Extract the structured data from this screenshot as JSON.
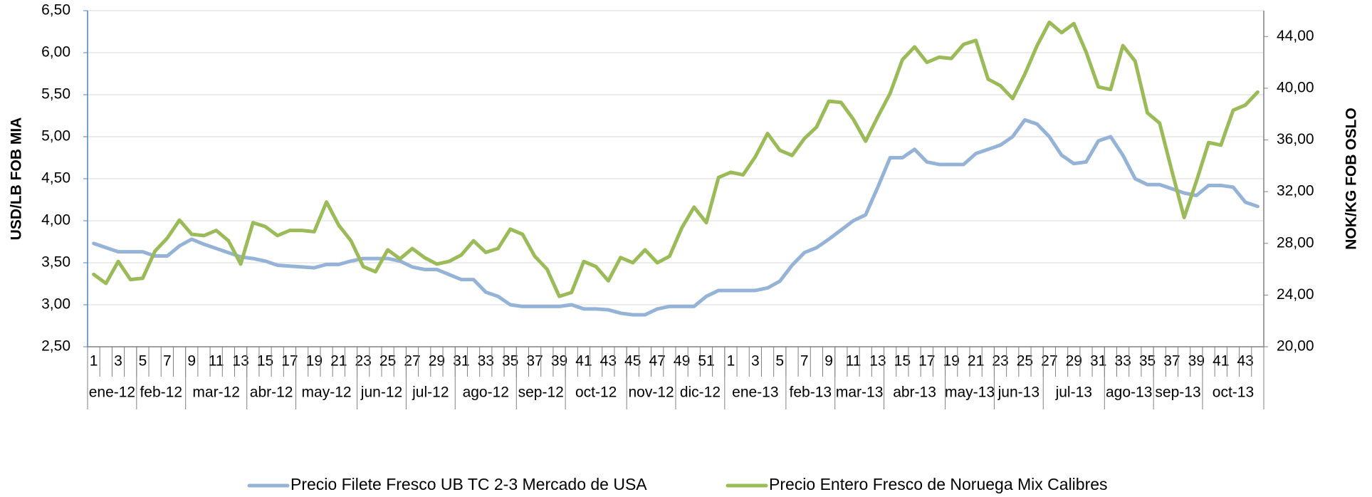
{
  "chart_data": {
    "type": "line",
    "ylabel": "USD/LB FOB MIA",
    "y2label": "NOK/KG FOB OSLO",
    "categories": [
      "1",
      null,
      "3",
      null,
      "5",
      null,
      "7",
      null,
      "9",
      null,
      "11",
      null,
      "13",
      null,
      "15",
      null,
      "17",
      null,
      "19",
      null,
      "21",
      null,
      "23",
      null,
      "25",
      null,
      "27",
      null,
      "29",
      null,
      "31",
      null,
      "33",
      null,
      "35",
      null,
      "37",
      null,
      "39",
      null,
      "41",
      null,
      "43",
      null,
      "45",
      null,
      "47",
      null,
      "49",
      null,
      "51",
      null,
      "1",
      null,
      "3",
      null,
      "5",
      null,
      "7",
      null,
      "9",
      null,
      "11",
      null,
      "13",
      null,
      "15",
      null,
      "17",
      null,
      "19",
      null,
      "21",
      null,
      "23",
      null,
      "25",
      null,
      "27",
      null,
      "29",
      null,
      "31",
      null,
      "33",
      null,
      "35",
      null,
      "37",
      null,
      "39",
      null,
      "41",
      null,
      "43",
      null
    ],
    "x_groups": [
      {
        "label": "ene-12",
        "count": 4
      },
      {
        "label": "feb-12",
        "count": 4
      },
      {
        "label": "mar-12",
        "count": 5
      },
      {
        "label": "abr-12",
        "count": 4
      },
      {
        "label": "may-12",
        "count": 5
      },
      {
        "label": "jun-12",
        "count": 4
      },
      {
        "label": "jul-12",
        "count": 4
      },
      {
        "label": "ago-12",
        "count": 5
      },
      {
        "label": "sep-12",
        "count": 4
      },
      {
        "label": "oct-12",
        "count": 5
      },
      {
        "label": "nov-12",
        "count": 4
      },
      {
        "label": "dic-12",
        "count": 4
      },
      {
        "label": "ene-13",
        "count": 5
      },
      {
        "label": "feb-13",
        "count": 4
      },
      {
        "label": "mar-13",
        "count": 4
      },
      {
        "label": "abr-13",
        "count": 5
      },
      {
        "label": "may-13",
        "count": 4
      },
      {
        "label": "jun-13",
        "count": 4
      },
      {
        "label": "jul-13",
        "count": 5
      },
      {
        "label": "ago-13",
        "count": 4
      },
      {
        "label": "sep-13",
        "count": 4
      },
      {
        "label": "oct-13",
        "count": 5
      }
    ],
    "series": [
      {
        "name": "Precio Filete Fresco UB TC 2-3 Mercado de USA",
        "color": "#95b3d7",
        "values": [
          3.73,
          3.68,
          3.63,
          3.63,
          3.63,
          3.58,
          3.58,
          3.7,
          3.78,
          3.72,
          3.67,
          3.62,
          3.57,
          3.55,
          3.52,
          3.47,
          3.46,
          3.45,
          3.44,
          3.48,
          3.48,
          3.52,
          3.55,
          3.55,
          3.55,
          3.52,
          3.45,
          3.42,
          3.42,
          3.36,
          3.3,
          3.3,
          3.15,
          3.1,
          3.0,
          2.98,
          2.98,
          2.98,
          2.98,
          3.0,
          2.95,
          2.95,
          2.94,
          2.9,
          2.88,
          2.88,
          2.95,
          2.98,
          2.98,
          2.98,
          3.1,
          3.17,
          3.17,
          3.17,
          3.17,
          3.2,
          3.28,
          3.47,
          3.62,
          3.68,
          3.78,
          3.89,
          4.0,
          4.07,
          4.4,
          4.75,
          4.75,
          4.85,
          4.7,
          4.67,
          4.67,
          4.67,
          4.8,
          4.85,
          4.9,
          5.0,
          5.2,
          5.15,
          5.0,
          4.78,
          4.68,
          4.7,
          4.95,
          5.0,
          4.78,
          4.5,
          4.43,
          4.43,
          4.38,
          4.33,
          4.3,
          4.42,
          4.42,
          4.4,
          4.22,
          4.17
        ]
      },
      {
        "name": "Precio Entero Fresco de Noruega Mix Calibres",
        "color": "#9bbb59",
        "axis": "y2",
        "values": [
          25.6,
          24.9,
          26.6,
          25.2,
          25.3,
          27.4,
          28.4,
          29.8,
          28.7,
          28.6,
          29.0,
          28.2,
          26.4,
          29.6,
          29.3,
          28.6,
          29.0,
          29.0,
          28.9,
          31.2,
          29.4,
          28.2,
          26.2,
          25.8,
          27.5,
          26.8,
          27.6,
          26.9,
          26.4,
          26.6,
          27.1,
          28.2,
          27.3,
          27.6,
          29.1,
          28.7,
          27.0,
          26.0,
          23.9,
          24.2,
          26.6,
          26.2,
          25.1,
          26.9,
          26.5,
          27.5,
          26.5,
          27.0,
          29.2,
          30.8,
          29.6,
          33.1,
          33.5,
          33.3,
          34.7,
          36.5,
          35.2,
          34.8,
          36.1,
          37.0,
          39.0,
          38.9,
          37.6,
          35.9,
          37.8,
          39.6,
          42.2,
          43.2,
          42.0,
          42.4,
          42.3,
          43.4,
          43.7,
          40.7,
          40.2,
          39.2,
          41.1,
          43.3,
          45.1,
          44.3,
          45.0,
          42.8,
          40.1,
          39.9,
          43.3,
          42.1,
          38.1,
          37.3,
          33.6,
          30.0,
          32.8,
          35.8,
          35.6,
          38.3,
          38.7,
          39.7
        ]
      }
    ],
    "ylim": [
      2.5,
      6.5
    ],
    "yticks": [
      {
        "value": 2.5,
        "label": "2,50"
      },
      {
        "value": 3,
        "label": "3,00"
      },
      {
        "value": 3.5,
        "label": "3,50"
      },
      {
        "value": 4,
        "label": "4,00"
      },
      {
        "value": 4.5,
        "label": "4,50"
      },
      {
        "value": 5,
        "label": "5,00"
      },
      {
        "value": 5.5,
        "label": "5,50"
      },
      {
        "value": 6,
        "label": "6,00"
      },
      {
        "value": 6.5,
        "label": "6,50"
      }
    ],
    "y2lim": [
      20,
      46
    ],
    "y2ticks": [
      {
        "value": 20,
        "label": "20,00"
      },
      {
        "value": 24,
        "label": "24,00"
      },
      {
        "value": 28,
        "label": "28,00"
      },
      {
        "value": 32,
        "label": "32,00"
      },
      {
        "value": 36,
        "label": "36,00"
      },
      {
        "value": 40,
        "label": "40,00"
      },
      {
        "value": 44,
        "label": "44,00"
      }
    ],
    "grid": true,
    "legend": "bottom"
  }
}
